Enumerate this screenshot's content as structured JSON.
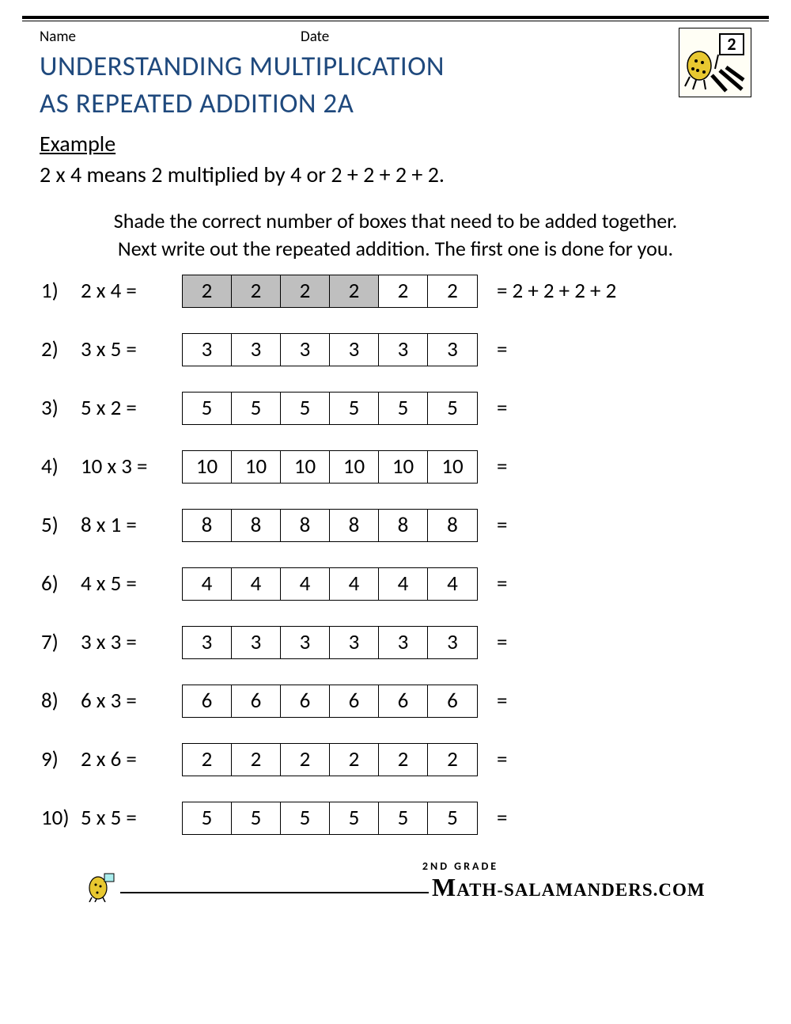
{
  "header": {
    "name_label": "Name",
    "date_label": "Date"
  },
  "title_line1": "UNDERSTANDING MULTIPLICATION",
  "title_line2": "AS REPEATED ADDITION 2A",
  "example_label": "Example",
  "example_text": "2 x 4 means 2 multiplied by 4 or 2 + 2 + 2 + 2.",
  "instructions_line1": "Shade the correct number of boxes that need to be added together.",
  "instructions_line2": "Next write out the repeated addition. The first one is done for you.",
  "box_count": 6,
  "colors": {
    "title": "#1f497d",
    "shaded_box": "#bfbfbf",
    "box_border": "#000000",
    "text": "#000000",
    "background": "#ffffff"
  },
  "problems": [
    {
      "num": "1)",
      "expr": "2 x 4 =",
      "box_value": "2",
      "shaded": 4,
      "answer": "= 2 + 2 + 2 + 2"
    },
    {
      "num": "2)",
      "expr": "3 x 5 =",
      "box_value": "3",
      "shaded": 0,
      "answer": "="
    },
    {
      "num": "3)",
      "expr": "5 x 2 =",
      "box_value": "5",
      "shaded": 0,
      "answer": "="
    },
    {
      "num": "4)",
      "expr": "10 x 3 =",
      "box_value": "10",
      "shaded": 0,
      "answer": "="
    },
    {
      "num": "5)",
      "expr": "8 x 1 =",
      "box_value": "8",
      "shaded": 0,
      "answer": "="
    },
    {
      "num": "6)",
      "expr": "4 x 5 =",
      "box_value": "4",
      "shaded": 0,
      "answer": "="
    },
    {
      "num": "7)",
      "expr": "3 x 3 =",
      "box_value": "3",
      "shaded": 0,
      "answer": "="
    },
    {
      "num": "8)",
      "expr": "6 x 3 =",
      "box_value": "6",
      "shaded": 0,
      "answer": "="
    },
    {
      "num": "9)",
      "expr": "2 x 6 =",
      "box_value": "2",
      "shaded": 0,
      "answer": "="
    },
    {
      "num": "10)",
      "expr": "5 x 5 =",
      "box_value": "5",
      "shaded": 0,
      "answer": "="
    }
  ],
  "footer": {
    "grade": "2ND GRADE",
    "site": "ATH-SALAMANDERS.COM"
  }
}
